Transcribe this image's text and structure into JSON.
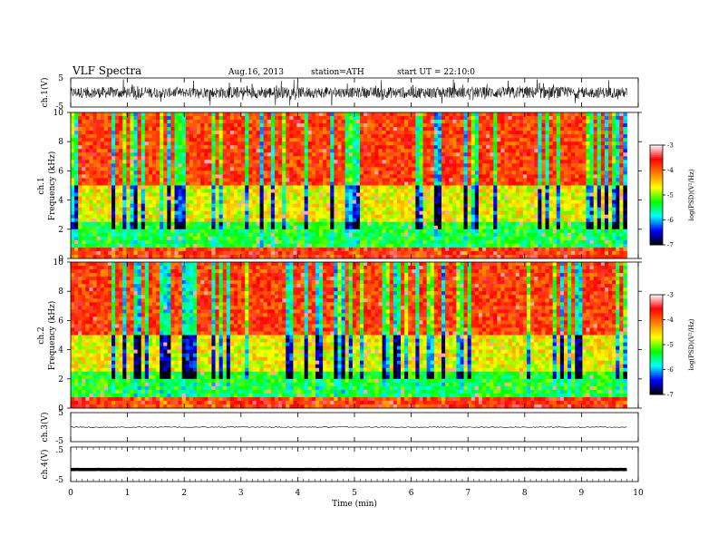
{
  "header": {
    "title": "VLF Spectra",
    "date": "Aug.16, 2013",
    "station": "station=ATH",
    "start": "start  UT =   22:10:0"
  },
  "chart_data": [
    {
      "type": "line",
      "name": "ch1-waveform",
      "ylabel": "ch.1(V)",
      "ylim": [
        -5,
        5
      ],
      "yticks": [
        "5",
        "-5"
      ],
      "x_unit": "min",
      "xlim": [
        0,
        10
      ],
      "data_extent": [
        0,
        9.8
      ],
      "amplitude_envelope": [
        [
          0,
          1.8
        ],
        [
          1,
          2.0
        ],
        [
          2,
          1.6
        ],
        [
          3,
          2.1
        ],
        [
          4,
          1.9
        ],
        [
          5,
          1.7
        ],
        [
          6,
          2.0
        ],
        [
          7,
          1.8
        ],
        [
          8,
          2.1
        ],
        [
          9,
          1.9
        ],
        [
          9.8,
          1.8
        ]
      ]
    },
    {
      "type": "heatmap",
      "name": "ch1-spectrogram",
      "ylabel": "ch.1 Frequency (kHz)",
      "ylim": [
        0,
        10
      ],
      "yticks": [
        "0",
        "2",
        "4",
        "6",
        "8",
        "10"
      ],
      "x_unit": "min",
      "xlim": [
        0,
        10
      ],
      "data_extent": [
        0,
        9.8
      ],
      "colorbar": {
        "label": "log(PSD)(V²/Hz)",
        "range": [
          -7,
          -3
        ],
        "ticks": [
          "-3",
          "-4",
          "-5",
          "-6",
          "-7"
        ],
        "colors": [
          "#000000",
          "#0000ff",
          "#00ffff",
          "#00ff00",
          "#ffff00",
          "#ff8000",
          "#ff0000",
          "#ffffff"
        ]
      }
    },
    {
      "type": "heatmap",
      "name": "ch2-spectrogram",
      "ylabel": "ch.2 Frequency (kHz)",
      "ylim": [
        0,
        10
      ],
      "yticks": [
        "0",
        "2",
        "4",
        "6",
        "8",
        "10"
      ],
      "x_unit": "min",
      "xlim": [
        0,
        10
      ],
      "data_extent": [
        0,
        9.8
      ],
      "colorbar": {
        "label": "log(PSD)(V²/Hz)",
        "range": [
          -7,
          -3
        ],
        "ticks": [
          "-3",
          "-4",
          "-5",
          "-6",
          "-7"
        ],
        "colors": [
          "#000000",
          "#0000ff",
          "#00ffff",
          "#00ff00",
          "#ffff00",
          "#ff8000",
          "#ff0000",
          "#ffffff"
        ]
      }
    },
    {
      "type": "line",
      "name": "ch3-waveform",
      "ylabel": "ch.3(V)",
      "ylim": [
        -5,
        5
      ],
      "yticks": [
        "5",
        "-5"
      ],
      "x_unit": "min",
      "xlim": [
        0,
        10
      ],
      "data_extent": [
        0,
        9.8
      ],
      "level": 0.0
    },
    {
      "type": "line",
      "name": "ch4-waveform",
      "ylabel": "ch.4(V)",
      "ylim": [
        -5,
        5
      ],
      "yticks": [
        ".5",
        "-5"
      ],
      "x_unit": "min",
      "xlim": [
        0,
        10
      ],
      "data_extent": [
        0,
        9.8
      ],
      "level": -1.5
    }
  ],
  "xaxis": {
    "label": "Time  (min)",
    "ticks": [
      "0",
      "1",
      "2",
      "3",
      "4",
      "5",
      "6",
      "7",
      "8",
      "9",
      "10"
    ]
  }
}
